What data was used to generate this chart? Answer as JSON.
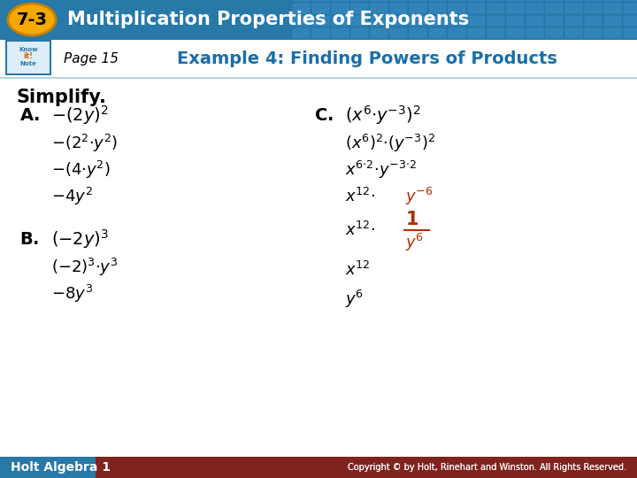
{
  "title_badge": "7-3",
  "title_text": "Multiplication Properties of Exponents",
  "header_bg": "#2878a8",
  "badge_bg": "#f5a800",
  "page_text": "Page 15",
  "example_text": "Example 4: Finding Powers of Products",
  "simplify_text": "Simplify.",
  "footer_text": "Holt Algebra 1",
  "footer_right": "Copyright © by Holt, Rinehart and Winston. All Rights Reserved.",
  "example_title_color": "#1a6eab",
  "black": "#111111",
  "red": "#b03000",
  "white": "#ffffff",
  "footer_bg": "#2878a8",
  "body_bg": "#ffffff",
  "grid_color": "#3a8ec8",
  "subheader_bg": "#ffffff"
}
